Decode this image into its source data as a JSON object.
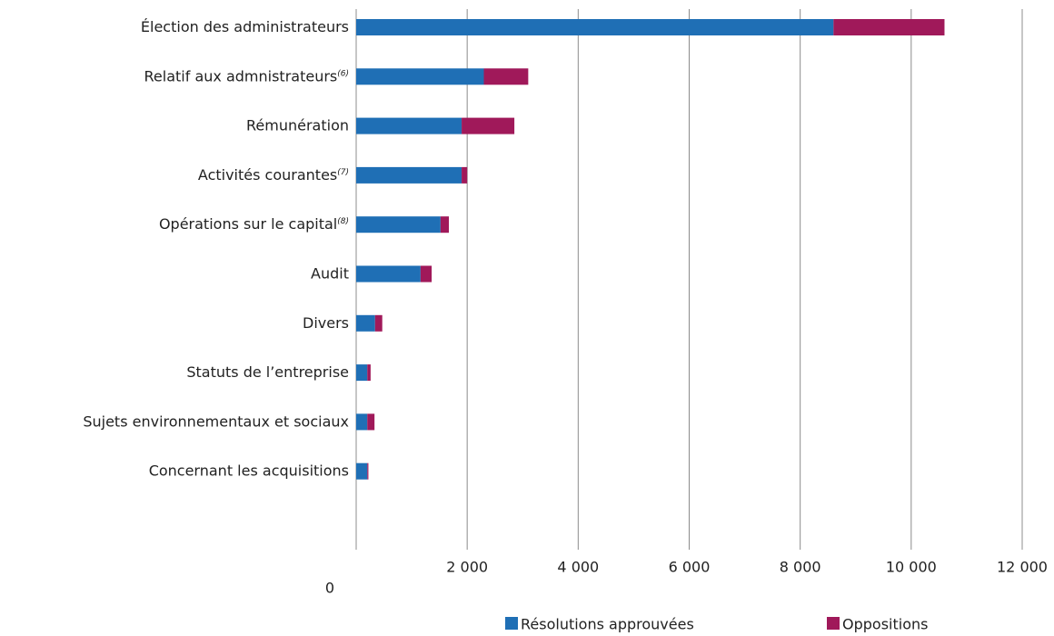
{
  "chart_data": {
    "type": "stacked_barh",
    "categories": [
      "Élection des administrateurs",
      "Relatif aux admnistrateurs",
      "Rémunération",
      "Activités courantes",
      "Opérations sur le capital",
      "Audit",
      "Divers",
      "Statuts de l’entreprise",
      "Sujets environnementaux et sociaux",
      "Concernant les acquisitions"
    ],
    "category_notes": [
      null,
      "(6)",
      null,
      "(7)",
      "(8)",
      null,
      null,
      null,
      null,
      null
    ],
    "series": [
      {
        "name": "Résolutions approuvées",
        "color": "#1f6fb5",
        "values": [
          8600,
          2300,
          1900,
          1900,
          1520,
          1160,
          340,
          200,
          200,
          200
        ]
      },
      {
        "name": "Oppositions",
        "color": "#a0195a",
        "values": [
          2000,
          800,
          950,
          100,
          150,
          200,
          130,
          60,
          130,
          20
        ]
      }
    ],
    "xlim": [
      0,
      12000
    ],
    "xticks": [
      0,
      {
        "value": 2000,
        "label": "2 000"
      },
      {
        "value": 4000,
        "label": "4 000"
      },
      {
        "value": 6000,
        "label": "6 000"
      },
      {
        "value": 8000,
        "label": "8 000"
      },
      {
        "value": 10000,
        "label": "10 000"
      },
      {
        "value": 12000,
        "label": "12 000"
      }
    ],
    "grid": true,
    "legend": "bottom"
  }
}
